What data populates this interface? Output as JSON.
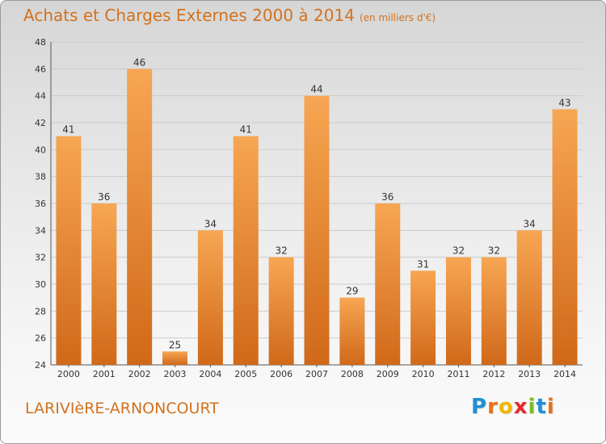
{
  "header": {
    "title": "Achats et Charges Externes 2000 à 2014",
    "unit": "(en milliers d'€)"
  },
  "footer": {
    "commune": "LARIVIèRE-ARNONCOURT",
    "brand": [
      "P",
      "r",
      "o",
      "x",
      "i",
      "t",
      "i"
    ],
    "brand_colors": [
      "#1e8fd6",
      "#e8701a",
      "#f2b705",
      "#e8292d",
      "#7cba25",
      "#1e8fd6",
      "#e8701a"
    ]
  },
  "colors": {
    "bar_light": "#f6a24e",
    "bar_dark": "#d26a16",
    "accent": "#d2721f",
    "grid": "#cccccc"
  },
  "chart_data": {
    "type": "bar",
    "title": "Achats et Charges Externes 2000 à 2014",
    "categories": [
      "2000",
      "2001",
      "2002",
      "2003",
      "2004",
      "2005",
      "2006",
      "2007",
      "2008",
      "2009",
      "2010",
      "2011",
      "2012",
      "2013",
      "2014"
    ],
    "values": [
      41,
      36,
      46,
      25,
      34,
      41,
      32,
      44,
      29,
      36,
      31,
      32,
      32,
      34,
      43
    ],
    "ylim": [
      24,
      48
    ],
    "yticks": [
      24,
      26,
      28,
      30,
      32,
      34,
      36,
      38,
      40,
      42,
      44,
      46,
      48
    ],
    "grid": true
  }
}
